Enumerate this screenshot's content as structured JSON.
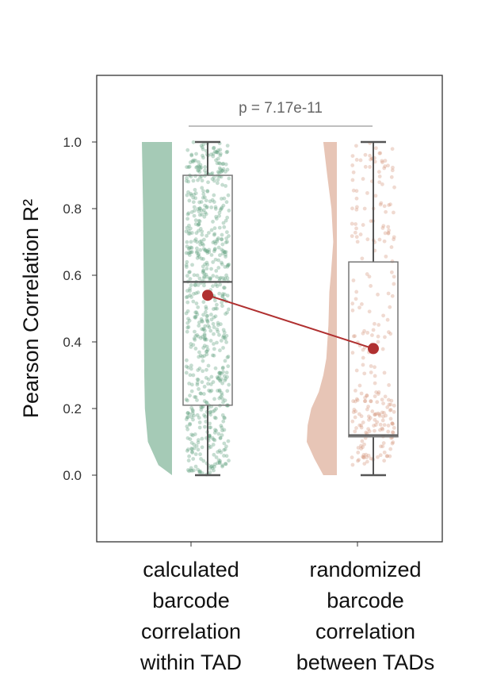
{
  "chart_data": {
    "type": "raincloud",
    "ylabel": "Pearson Correlation R²",
    "ylim": [
      -0.2,
      1.2
    ],
    "yticks": [
      "0.0",
      "0.2",
      "0.4",
      "0.6",
      "0.8",
      "1.0"
    ],
    "annotation": "p = 7.17e-11",
    "categories": [
      {
        "label_lines": [
          "calculated",
          "barcode",
          "correlation",
          "within TAD"
        ],
        "color": "#5b9f7a",
        "box": {
          "min": 0.0,
          "q1": 0.21,
          "median": 0.58,
          "q3": 0.9,
          "max": 1.0
        },
        "mean": 0.54,
        "density": [
          [
            0.0,
            0.0
          ],
          [
            0.03,
            0.45
          ],
          [
            0.1,
            0.8
          ],
          [
            0.2,
            0.9
          ],
          [
            0.3,
            0.92
          ],
          [
            0.4,
            0.93
          ],
          [
            0.5,
            0.93
          ],
          [
            0.6,
            0.94
          ],
          [
            0.7,
            0.95
          ],
          [
            0.8,
            0.96
          ],
          [
            0.9,
            0.98
          ],
          [
            1.0,
            1.0
          ]
        ]
      },
      {
        "label_lines": [
          "randomized",
          "barcode",
          "correlation",
          "between TADs"
        ],
        "color": "#d4957a",
        "box": {
          "min": 0.0,
          "q1": 0.115,
          "median": 0.12,
          "q3": 0.64,
          "max": 1.0
        },
        "mean": 0.38,
        "density": [
          [
            0.0,
            0.45
          ],
          [
            0.05,
            0.75
          ],
          [
            0.1,
            1.0
          ],
          [
            0.15,
            0.97
          ],
          [
            0.2,
            0.85
          ],
          [
            0.25,
            0.6
          ],
          [
            0.3,
            0.45
          ],
          [
            0.35,
            0.35
          ],
          [
            0.45,
            0.28
          ],
          [
            0.55,
            0.25
          ],
          [
            0.6,
            0.2
          ],
          [
            0.7,
            0.12
          ],
          [
            0.8,
            0.18
          ],
          [
            0.9,
            0.32
          ],
          [
            1.0,
            0.45
          ]
        ]
      }
    ],
    "mean_marker_color": "#b03030"
  }
}
